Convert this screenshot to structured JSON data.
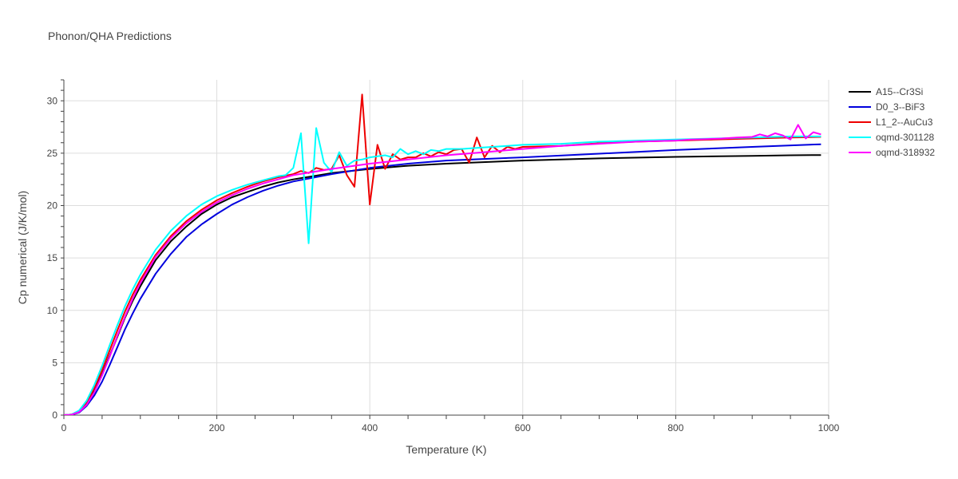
{
  "chart_data": {
    "type": "line",
    "title": "Phonon/QHA Predictions",
    "xlabel": "Temperature (K)",
    "ylabel": "Cp numerical (J/K/mol)",
    "xlim": [
      0,
      1000
    ],
    "ylim": [
      0,
      32
    ],
    "xticks": [
      0,
      200,
      400,
      600,
      800,
      1000
    ],
    "yticks": [
      0,
      5,
      10,
      15,
      20,
      25,
      30
    ],
    "grid": true,
    "legend_position": "top-right",
    "series": [
      {
        "name": "A15--Cr3Si",
        "color": "#000000",
        "x": [
          0,
          10,
          20,
          30,
          40,
          50,
          60,
          70,
          80,
          90,
          100,
          120,
          140,
          160,
          180,
          200,
          220,
          240,
          260,
          280,
          300,
          350,
          400,
          450,
          500,
          600,
          700,
          800,
          900,
          950,
          990
        ],
        "y": [
          0,
          0.05,
          0.35,
          1.1,
          2.3,
          3.9,
          5.7,
          7.5,
          9.3,
          10.9,
          12.3,
          14.8,
          16.6,
          18.0,
          19.2,
          20.1,
          20.8,
          21.3,
          21.8,
          22.2,
          22.5,
          23.1,
          23.5,
          23.8,
          24.0,
          24.3,
          24.5,
          24.65,
          24.75,
          24.8,
          24.82
        ]
      },
      {
        "name": "D0_3--BiF3",
        "color": "#0000dd",
        "x": [
          0,
          10,
          20,
          30,
          40,
          50,
          60,
          70,
          80,
          90,
          100,
          120,
          140,
          160,
          180,
          200,
          220,
          240,
          260,
          280,
          300,
          350,
          400,
          450,
          500,
          600,
          700,
          800,
          900,
          990
        ],
        "y": [
          0,
          0.03,
          0.25,
          0.9,
          1.9,
          3.2,
          4.8,
          6.5,
          8.2,
          9.7,
          11.1,
          13.5,
          15.4,
          17.0,
          18.2,
          19.2,
          20.1,
          20.8,
          21.4,
          21.9,
          22.3,
          23.0,
          23.6,
          24.0,
          24.3,
          24.6,
          24.95,
          25.3,
          25.6,
          25.85
        ]
      },
      {
        "name": "L1_2--AuCu3",
        "color": "#ee0000",
        "x": [
          0,
          10,
          20,
          30,
          40,
          50,
          60,
          70,
          80,
          90,
          100,
          120,
          140,
          160,
          180,
          200,
          220,
          240,
          260,
          280,
          300,
          310,
          320,
          330,
          340,
          350,
          360,
          370,
          380,
          390,
          400,
          410,
          420,
          430,
          440,
          450,
          460,
          470,
          480,
          490,
          500,
          510,
          520,
          530,
          540,
          550,
          560,
          570,
          580,
          590,
          600,
          650,
          700,
          750,
          800,
          850,
          900,
          950,
          990
        ],
        "y": [
          0,
          0.05,
          0.4,
          1.2,
          2.6,
          4.3,
          6.2,
          8.1,
          9.9,
          11.5,
          12.9,
          15.3,
          17.1,
          18.5,
          19.6,
          20.5,
          21.2,
          21.8,
          22.3,
          22.7,
          23.0,
          23.3,
          23.1,
          23.6,
          23.4,
          23.5,
          24.8,
          22.9,
          21.8,
          30.6,
          20.1,
          25.8,
          23.5,
          24.9,
          24.4,
          24.6,
          24.6,
          25.0,
          24.7,
          25.1,
          24.9,
          25.3,
          25.4,
          24.1,
          26.5,
          24.6,
          25.7,
          25.1,
          25.6,
          25.4,
          25.6,
          25.7,
          25.95,
          26.1,
          26.2,
          26.3,
          26.4,
          26.5,
          26.55
        ]
      },
      {
        "name": "oqmd-301128",
        "color": "#00ffff",
        "x": [
          0,
          10,
          20,
          30,
          40,
          50,
          60,
          70,
          80,
          90,
          100,
          120,
          140,
          160,
          180,
          200,
          220,
          240,
          260,
          280,
          290,
          300,
          310,
          320,
          330,
          340,
          350,
          360,
          370,
          380,
          390,
          400,
          410,
          420,
          430,
          440,
          450,
          460,
          470,
          480,
          490,
          500,
          520,
          540,
          560,
          580,
          600,
          650,
          700,
          750,
          800,
          850,
          900,
          950,
          990
        ],
        "y": [
          0,
          0.05,
          0.45,
          1.4,
          2.9,
          4.7,
          6.7,
          8.6,
          10.4,
          12.0,
          13.4,
          15.8,
          17.6,
          19.0,
          20.1,
          20.9,
          21.5,
          22.0,
          22.4,
          22.8,
          22.9,
          23.6,
          26.9,
          16.4,
          27.4,
          24.1,
          23.2,
          25.1,
          23.8,
          24.3,
          24.4,
          24.6,
          24.7,
          24.8,
          24.6,
          25.4,
          24.9,
          25.2,
          24.9,
          25.3,
          25.2,
          25.4,
          25.4,
          25.5,
          25.6,
          25.7,
          25.8,
          25.9,
          26.1,
          26.2,
          26.3,
          26.4,
          26.5,
          26.6,
          26.6
        ]
      },
      {
        "name": "oqmd-318932",
        "color": "#ff00ff",
        "x": [
          0,
          10,
          20,
          30,
          40,
          50,
          60,
          70,
          80,
          90,
          100,
          120,
          140,
          160,
          180,
          200,
          220,
          240,
          260,
          280,
          300,
          350,
          400,
          450,
          500,
          550,
          600,
          650,
          700,
          750,
          800,
          820,
          840,
          860,
          880,
          900,
          910,
          920,
          930,
          940,
          950,
          960,
          970,
          980,
          990
        ],
        "y": [
          0,
          0.04,
          0.3,
          1.0,
          2.2,
          3.8,
          5.6,
          7.6,
          9.4,
          11.1,
          12.6,
          15.1,
          16.9,
          18.3,
          19.4,
          20.3,
          21.0,
          21.6,
          22.1,
          22.5,
          22.9,
          23.5,
          24.0,
          24.4,
          24.8,
          25.1,
          25.4,
          25.7,
          25.9,
          26.1,
          26.2,
          26.3,
          26.35,
          26.4,
          26.5,
          26.55,
          26.8,
          26.6,
          26.9,
          26.7,
          26.3,
          27.7,
          26.4,
          27.0,
          26.8
        ]
      }
    ]
  }
}
